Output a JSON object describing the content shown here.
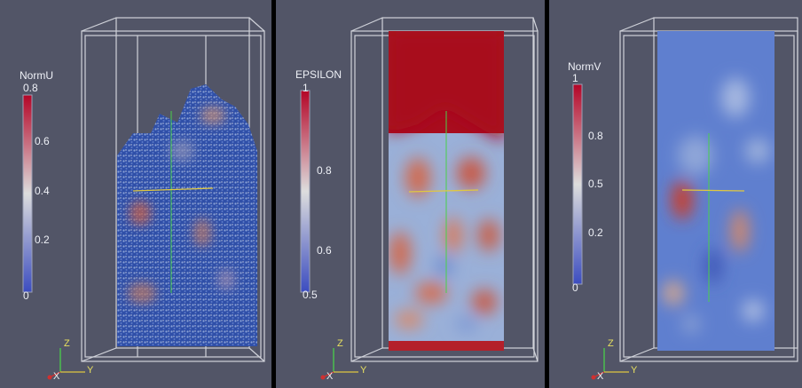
{
  "panels": [
    {
      "id": "p1",
      "colorbar": {
        "title": "NormU",
        "ticks": [
          {
            "label": "0.8",
            "frac": 1.0
          },
          {
            "label": "0.6",
            "frac": 0.75
          },
          {
            "label": "0.4",
            "frac": 0.5
          },
          {
            "label": "0.2",
            "frac": 0.25
          },
          {
            "label": "0",
            "frac": 0.0
          }
        ]
      },
      "axes": {
        "x": "X",
        "y": "Y",
        "z": "Z"
      }
    },
    {
      "id": "p2",
      "colorbar": {
        "title": "EPSILON",
        "ticks": [
          {
            "label": "1",
            "frac": 1.0
          },
          {
            "label": "0.8",
            "frac": 0.6
          },
          {
            "label": "0.6",
            "frac": 0.2
          },
          {
            "label": "0.5",
            "frac": 0.0
          }
        ]
      },
      "axes": {
        "x": "X",
        "y": "Y",
        "z": "Z"
      }
    },
    {
      "id": "p3",
      "colorbar": {
        "title": "NormV",
        "ticks": [
          {
            "label": "1",
            "frac": 1.0
          },
          {
            "label": "0.8",
            "frac": 0.74
          },
          {
            "label": "0.5",
            "frac": 0.5
          },
          {
            "label": "0.2",
            "frac": 0.25
          },
          {
            "label": "0",
            "frac": 0.0
          }
        ]
      },
      "axes": {
        "x": "X",
        "y": "Y",
        "z": "Z"
      }
    }
  ],
  "colors": {
    "background": "#525567",
    "colormap_low": "#3b4cc0",
    "colormap_mid": "#dddddd",
    "colormap_high": "#b40426",
    "bounding_box": "#e6e8ee"
  }
}
